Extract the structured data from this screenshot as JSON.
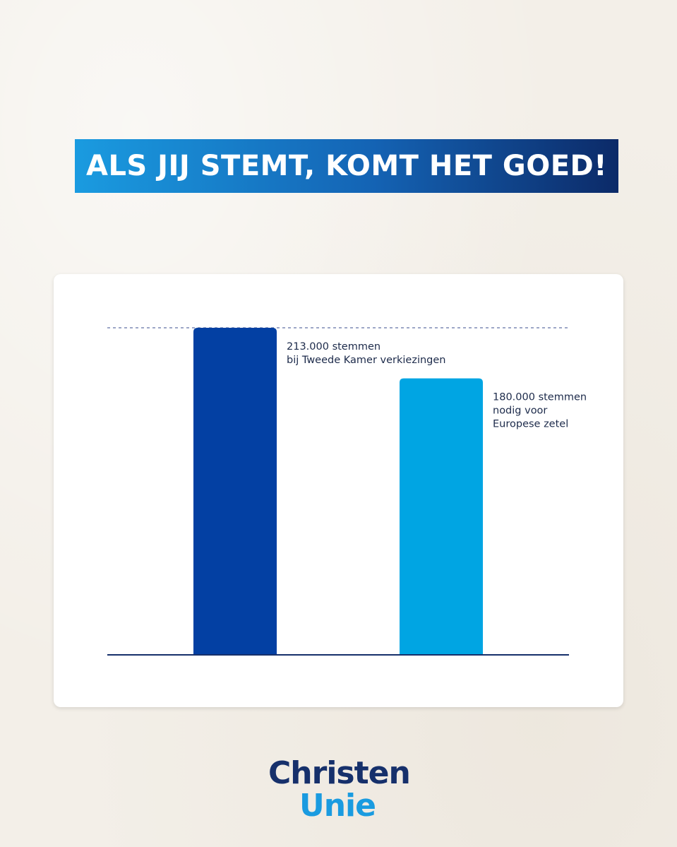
{
  "banner": {
    "text": "ALS JIJ STEMT, KOMT HET GOED!"
  },
  "chart_data": {
    "type": "bar",
    "title": "",
    "xlabel": "",
    "ylabel": "",
    "ylim": [
      0,
      213000
    ],
    "grid": false,
    "reference_line": {
      "value": 213000,
      "style": "dashed"
    },
    "categories": [
      "Tweede Kamer verkiezingen",
      "Europese zetel"
    ],
    "values": [
      213000,
      180000
    ],
    "colors": [
      "#0340a3",
      "#00a5e3"
    ],
    "labels": [
      [
        "213.000 stemmen",
        "bij Tweede Kamer verkiezingen"
      ],
      [
        "180.000 stemmen",
        "nodig voor",
        "Europese zetel"
      ]
    ]
  },
  "logo": {
    "line1": "Christen",
    "line2": "Unie",
    "colors": [
      "#16306b",
      "#1a9be0"
    ]
  }
}
